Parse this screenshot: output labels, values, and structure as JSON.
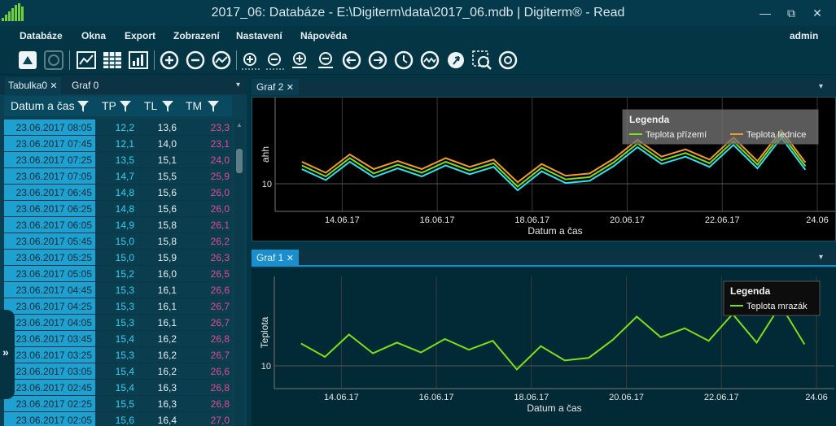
{
  "window": {
    "title": "2017_06: Databáze - E:\\Digiterm\\data\\2017_06.mdb  | Digiterm® - Read",
    "controls": [
      "—",
      "⧉",
      "✕"
    ]
  },
  "menu": {
    "items": [
      "Databáze",
      "Okna",
      "Export",
      "Zobrazení",
      "Nastavení",
      "Nápověda"
    ],
    "user": "admin"
  },
  "toolbar": {
    "icons": [
      "import-icon",
      "refresh-icon",
      "line-chart-icon",
      "table-icon",
      "bar-chart-icon",
      "zoom-in-icon",
      "zoom-out-icon",
      "fit-chart-icon",
      "zoom-in-x-icon",
      "zoom-out-x-icon",
      "zoom-in-y-icon",
      "zoom-out-y-icon",
      "undo-zoom-icon",
      "redo-zoom-icon",
      "time-axis-icon",
      "curves-icon",
      "pointer-icon",
      "select-zoom-icon",
      "settings-icon"
    ]
  },
  "left": {
    "tabs": [
      "Tabulka0",
      "Graf 0"
    ],
    "columns": [
      "Datum a čas",
      "TP",
      "TL",
      "TM"
    ],
    "rows": [
      [
        "23.06.2017 08:05",
        "12,2",
        "13,6",
        "23,3"
      ],
      [
        "23.06.2017 07:45",
        "12,1",
        "14,0",
        "23,1"
      ],
      [
        "23.06.2017 07:25",
        "13,5",
        "15,1",
        "24,0"
      ],
      [
        "23.06.2017 07:05",
        "14,7",
        "15,5",
        "25,9"
      ],
      [
        "23.06.2017 06:45",
        "14,8",
        "15,6",
        "26,0"
      ],
      [
        "23.06.2017 06:25",
        "14,8",
        "15,6",
        "26,0"
      ],
      [
        "23.06.2017 06:05",
        "14,9",
        "15,8",
        "26,1"
      ],
      [
        "23.06.2017 05:45",
        "15,0",
        "15,8",
        "26,2"
      ],
      [
        "23.06.2017 05:25",
        "15,0",
        "15,9",
        "26,3"
      ],
      [
        "23.06.2017 05:05",
        "15,2",
        "16,0",
        "26,5"
      ],
      [
        "23.06.2017 04:45",
        "15,3",
        "16,1",
        "26,6"
      ],
      [
        "23.06.2017 04:25",
        "15,3",
        "16,1",
        "26,7"
      ],
      [
        "23.06.2017 04:05",
        "15,3",
        "16,1",
        "26,7"
      ],
      [
        "23.06.2017 03:45",
        "15,4",
        "16,2",
        "26,8"
      ],
      [
        "23.06.2017 03:25",
        "15,3",
        "16,2",
        "26,7"
      ],
      [
        "23.06.2017 03:05",
        "15,4",
        "16,2",
        "26,6"
      ],
      [
        "23.06.2017 02:45",
        "15,4",
        "16,3",
        "26,8"
      ],
      [
        "23.06.2017 02:25",
        "15,5",
        "16,3",
        "26,8"
      ],
      [
        "23.06.2017 02:05",
        "15,6",
        "16,4",
        "27,0"
      ]
    ]
  },
  "graf2": {
    "tab": "Graf 2"
  },
  "graf1": {
    "tab": "Graf 1"
  },
  "chart_data": [
    {
      "type": "line",
      "title": "",
      "xlabel": "Datum a čas",
      "ylabel": "ahh",
      "x_ticks": [
        "14.06.17",
        "16.06.17",
        "18.06.17",
        "20.06.17",
        "22.06.17",
        "24.06"
      ],
      "y_ticks": [
        "10"
      ],
      "legend_title": "Legenda",
      "legend_position": "top-right",
      "grid": true,
      "series": [
        {
          "name": "Teplota přízemí",
          "color": "#7bdf19",
          "x": [
            "13.06.17",
            "13.06.17",
            "14.06.17",
            "14.06.17",
            "15.06.17",
            "15.06.17",
            "16.06.17",
            "16.06.17",
            "17.06.17",
            "17.06.17",
            "18.06.17",
            "18.06.17",
            "19.06.17",
            "19.06.17",
            "20.06.17",
            "20.06.17",
            "21.06.17",
            "21.06.17",
            "22.06.17",
            "22.06.17",
            "23.06.17",
            "23.06.17"
          ],
          "values": [
            12.5,
            11.0,
            13.5,
            11.4,
            12.6,
            11.5,
            13.0,
            11.8,
            12.8,
            9.6,
            12.2,
            10.6,
            10.9,
            12.9,
            15.5,
            13.2,
            14.2,
            12.8,
            15.8,
            12.6,
            16.8,
            12.4
          ]
        },
        {
          "name": "Teplota lednice",
          "color": "#f29a2e",
          "x": [
            "13.06.17",
            "13.06.17",
            "14.06.17",
            "14.06.17",
            "15.06.17",
            "15.06.17",
            "16.06.17",
            "16.06.17",
            "17.06.17",
            "17.06.17",
            "18.06.17",
            "18.06.17",
            "19.06.17",
            "19.06.17",
            "20.06.17",
            "20.06.17",
            "21.06.17",
            "21.06.17",
            "22.06.17",
            "22.06.17",
            "23.06.17",
            "23.06.17"
          ],
          "values": [
            13.0,
            11.5,
            14.0,
            12.0,
            13.1,
            12.0,
            13.5,
            12.3,
            13.3,
            10.2,
            12.7,
            11.1,
            11.4,
            13.4,
            16.0,
            13.7,
            14.7,
            13.3,
            16.3,
            13.1,
            17.3,
            12.9
          ]
        },
        {
          "color": "#2ce3f0",
          "x": [
            "13.06.17",
            "13.06.17",
            "14.06.17",
            "14.06.17",
            "15.06.17",
            "15.06.17",
            "16.06.17",
            "16.06.17",
            "17.06.17",
            "17.06.17",
            "18.06.17",
            "18.06.17",
            "19.06.17",
            "19.06.17",
            "20.06.17",
            "20.06.17",
            "21.06.17",
            "21.06.17",
            "22.06.17",
            "22.06.17",
            "23.06.17",
            "23.06.17"
          ],
          "values": [
            12.0,
            10.5,
            13.0,
            10.9,
            12.1,
            11.0,
            12.5,
            11.3,
            12.3,
            9.1,
            11.7,
            10.1,
            10.4,
            12.4,
            15.0,
            12.7,
            13.7,
            12.3,
            15.3,
            12.1,
            16.3,
            11.9
          ]
        }
      ]
    },
    {
      "type": "line",
      "title": "",
      "xlabel": "Datum a čas",
      "ylabel": "Teplota",
      "x_ticks": [
        "14.06.17",
        "16.06.17",
        "18.06.17",
        "20.06.17",
        "22.06.17",
        "24.06"
      ],
      "y_ticks": [
        "10"
      ],
      "legend_title": "Legenda",
      "legend_position": "top-right",
      "grid": true,
      "series": [
        {
          "name": "Teplota mrazák",
          "color": "#7bdf19",
          "x": [
            "13.06.17",
            "13.06.17",
            "14.06.17",
            "14.06.17",
            "15.06.17",
            "15.06.17",
            "16.06.17",
            "16.06.17",
            "17.06.17",
            "17.06.17",
            "18.06.17",
            "18.06.17",
            "19.06.17",
            "19.06.17",
            "20.06.17",
            "20.06.17",
            "21.06.17",
            "21.06.17",
            "22.06.17",
            "22.06.17",
            "23.06.17",
            "23.06.17"
          ],
          "values": [
            12.5,
            11.0,
            13.5,
            11.4,
            12.6,
            11.5,
            13.0,
            11.8,
            12.8,
            9.6,
            12.2,
            10.6,
            10.9,
            12.9,
            15.5,
            13.2,
            14.2,
            12.8,
            15.8,
            12.6,
            16.8,
            12.4
          ]
        }
      ]
    }
  ]
}
